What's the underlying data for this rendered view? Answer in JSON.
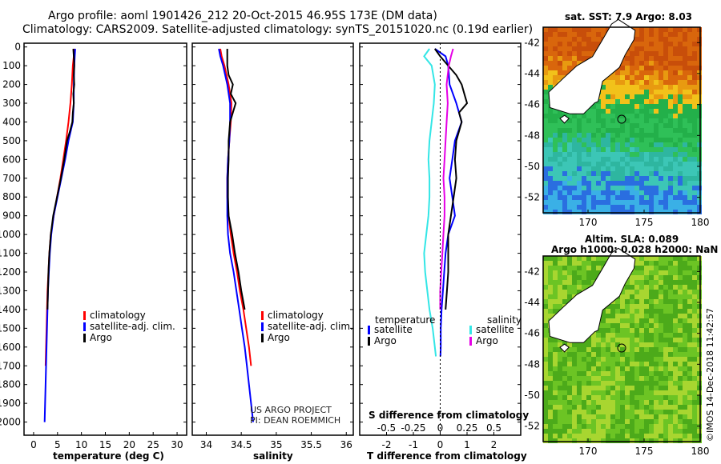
{
  "header": {
    "title_line1": "Argo profile: aoml 1901426_212 20-Oct-2015 46.95S 173E (DM data)",
    "title_line2": "Climatology: CARS2009. Satellite-adjusted climatology: synTS_20151020.nc (0.19d earlier)"
  },
  "colors": {
    "climatology": "#ff0000",
    "satellite_adj": "#0000ff",
    "argo": "#000000",
    "sat_salinity": "#33e6e6",
    "salinity_argo": "#e600e6"
  },
  "depth_ticks": [
    "0",
    "100",
    "200",
    "300",
    "400",
    "500",
    "600",
    "700",
    "800",
    "900",
    "1000",
    "1100",
    "1200",
    "1300",
    "1400",
    "1500",
    "1600",
    "1700",
    "1800",
    "1900",
    "2000"
  ],
  "chart_data": [
    {
      "type": "line",
      "id": "temperature",
      "xlabel": "temperature (deg C)",
      "xlim": [
        -2,
        32
      ],
      "ylim": [
        2070,
        -20
      ],
      "xticks": [
        "0",
        "5",
        "10",
        "15",
        "20",
        "25",
        "30"
      ],
      "legend": [
        "climatology",
        "satellite-adj. clim.",
        "Argo"
      ],
      "series": [
        {
          "name": "climatology",
          "depth": [
            10,
            50,
            100,
            200,
            300,
            400,
            500,
            600,
            700,
            800,
            900,
            1000,
            1100,
            1200,
            1300,
            1400,
            1500,
            1600,
            1700
          ],
          "values": [
            8.5,
            8.4,
            8.2,
            8.0,
            7.7,
            7.3,
            6.8,
            6.2,
            5.6,
            4.9,
            4.2,
            3.6,
            3.3,
            3.1,
            2.9,
            2.8,
            2.7,
            2.6,
            2.5
          ]
        },
        {
          "name": "satellite-adj. clim.",
          "depth": [
            10,
            50,
            100,
            200,
            300,
            400,
            500,
            600,
            700,
            800,
            900,
            1000,
            1100,
            1200,
            1300,
            1400,
            1500,
            1600,
            1700,
            1800,
            1900,
            2000
          ],
          "values": [
            8.7,
            8.6,
            8.5,
            8.4,
            8.4,
            8.2,
            7.3,
            6.6,
            5.8,
            5.0,
            4.2,
            3.7,
            3.4,
            3.2,
            3.0,
            2.9,
            2.8,
            2.7,
            2.6,
            2.5,
            2.4,
            2.3
          ]
        },
        {
          "name": "Argo",
          "depth": [
            10,
            50,
            100,
            150,
            200,
            250,
            300,
            350,
            400,
            450,
            500,
            600,
            700,
            800,
            900,
            1000,
            1100,
            1200,
            1300,
            1400
          ],
          "values": [
            8.3,
            8.4,
            8.5,
            8.4,
            8.5,
            8.3,
            8.4,
            8.2,
            8.1,
            7.6,
            7.0,
            6.4,
            5.7,
            4.9,
            4.1,
            3.6,
            3.3,
            3.1,
            3.0,
            2.9
          ]
        }
      ]
    },
    {
      "type": "line",
      "id": "salinity",
      "xlabel": "salinity",
      "xlim": [
        33.8,
        36.1
      ],
      "ylim": [
        2070,
        -20
      ],
      "xticks": [
        "34",
        "34.5",
        "35",
        "35.5",
        "36"
      ],
      "legend": [
        "climatology",
        "satellite-adj. clim.",
        "Argo"
      ],
      "annotation": [
        "US ARGO PROJECT",
        "PI: DEAN ROEMMICH"
      ],
      "series": [
        {
          "name": "climatology",
          "depth": [
            10,
            50,
            100,
            200,
            300,
            400,
            500,
            600,
            700,
            800,
            900,
            1000,
            1100,
            1200,
            1300,
            1400,
            1500,
            1600,
            1700
          ],
          "values": [
            34.2,
            34.22,
            34.26,
            34.32,
            34.36,
            34.35,
            34.33,
            34.31,
            34.3,
            34.3,
            34.32,
            34.35,
            34.39,
            34.44,
            34.48,
            34.53,
            34.57,
            34.61,
            34.64
          ]
        },
        {
          "name": "satellite-adj. clim.",
          "depth": [
            10,
            50,
            100,
            200,
            300,
            400,
            500,
            600,
            700,
            800,
            900,
            1000,
            1100,
            1200,
            1300,
            1400,
            1500,
            1600,
            1700,
            1800,
            1900,
            2000
          ],
          "values": [
            34.18,
            34.2,
            34.24,
            34.3,
            34.34,
            34.34,
            34.33,
            34.31,
            34.3,
            34.3,
            34.3,
            34.31,
            34.34,
            34.39,
            34.43,
            34.47,
            34.51,
            34.55,
            34.58,
            34.61,
            34.64,
            34.67
          ]
        },
        {
          "name": "Argo",
          "depth": [
            10,
            50,
            100,
            150,
            200,
            250,
            300,
            350,
            400,
            500,
            600,
            700,
            800,
            900,
            1000,
            1100,
            1200,
            1300,
            1400
          ],
          "values": [
            34.3,
            34.3,
            34.3,
            34.32,
            34.38,
            34.35,
            34.42,
            34.38,
            34.34,
            34.32,
            34.32,
            34.31,
            34.31,
            34.32,
            34.37,
            34.41,
            34.46,
            34.5,
            34.55
          ]
        }
      ]
    },
    {
      "type": "line",
      "id": "differences",
      "xlabel": "T difference from climatology",
      "xlabel_top": "S difference from climatology",
      "xlim": [
        -3,
        3
      ],
      "ylim": [
        2070,
        -20
      ],
      "xticks": [
        "-2",
        "-1",
        "0",
        "1",
        "2"
      ],
      "xticks_s": [
        "-0.5",
        "-0.25",
        "0",
        "0.25",
        "0.5"
      ],
      "legend_left_title": "temperature",
      "legend_right_title": "salinity",
      "legend_left": [
        "satellite",
        "Argo"
      ],
      "legend_right": [
        "satellite",
        "Argo"
      ],
      "series": [
        {
          "name": "temperature satellite",
          "depth": [
            10,
            50,
            100,
            200,
            300,
            400,
            500,
            600,
            700,
            800,
            900,
            1000,
            1100,
            1200,
            1300,
            1400,
            1500,
            1600,
            1650
          ],
          "values": [
            -0.2,
            0.2,
            0.3,
            0.35,
            0.6,
            0.8,
            0.55,
            0.45,
            0.35,
            0.45,
            0.55,
            0.3,
            0.2,
            0.15,
            0.1,
            0.05,
            0.02,
            0.02,
            0.01
          ]
        },
        {
          "name": "temperature Argo",
          "depth": [
            10,
            50,
            100,
            150,
            200,
            250,
            300,
            350,
            400,
            500,
            600,
            700,
            800,
            900,
            1000,
            1100,
            1200,
            1300,
            1400
          ],
          "values": [
            -0.2,
            0.0,
            0.3,
            0.6,
            0.8,
            0.9,
            1.0,
            0.7,
            0.8,
            0.6,
            0.55,
            0.6,
            0.5,
            0.4,
            0.3,
            0.3,
            0.3,
            0.25,
            0.2
          ]
        },
        {
          "name": "salinity satellite",
          "depth": [
            10,
            50,
            100,
            200,
            300,
            400,
            500,
            600,
            700,
            800,
            900,
            1000,
            1100,
            1200,
            1300,
            1400,
            1500,
            1600,
            1650
          ],
          "values": [
            -0.1,
            -0.15,
            -0.08,
            -0.05,
            -0.06,
            -0.08,
            -0.1,
            -0.11,
            -0.1,
            -0.1,
            -0.11,
            -0.13,
            -0.15,
            -0.14,
            -0.12,
            -0.1,
            -0.07,
            -0.05,
            -0.04
          ]
        },
        {
          "name": "salinity Argo",
          "depth": [
            10,
            50,
            100,
            200,
            300,
            400,
            500,
            600,
            700,
            800,
            900,
            1000,
            1100,
            1200,
            1300,
            1400
          ],
          "values": [
            0.12,
            0.1,
            0.08,
            0.06,
            0.07,
            0.06,
            0.05,
            0.04,
            0.03,
            0.04,
            0.04,
            0.03,
            0.02,
            0.01,
            0.0,
            0.0
          ]
        }
      ]
    },
    {
      "type": "heatmap",
      "id": "sst_map",
      "title": "sat. SST: 7.9 Argo: 8.03",
      "xlim": [
        166,
        180
      ],
      "ylim": [
        -53,
        -41
      ],
      "xticks": [
        "170",
        "175",
        "180"
      ],
      "yticks": [
        "-42",
        "-44",
        "-46",
        "-48",
        "-50",
        "-52"
      ],
      "profile_position": [
        173,
        -46.95
      ]
    },
    {
      "type": "heatmap",
      "id": "sla_map",
      "title_line1": "Altim. SLA: 0.089",
      "title_line2": "Argo h1000: 0.028 h2000: NaN",
      "xlim": [
        166,
        180
      ],
      "ylim": [
        -53,
        -41
      ],
      "xticks": [
        "170",
        "175",
        "180"
      ],
      "yticks": [
        "-42",
        "-44",
        "-46",
        "-48",
        "-50",
        "-52"
      ],
      "profile_position": [
        173,
        -46.95
      ]
    }
  ],
  "footer": {
    "credit": "©IMOS 14-Dec-2018 11:42:57"
  }
}
